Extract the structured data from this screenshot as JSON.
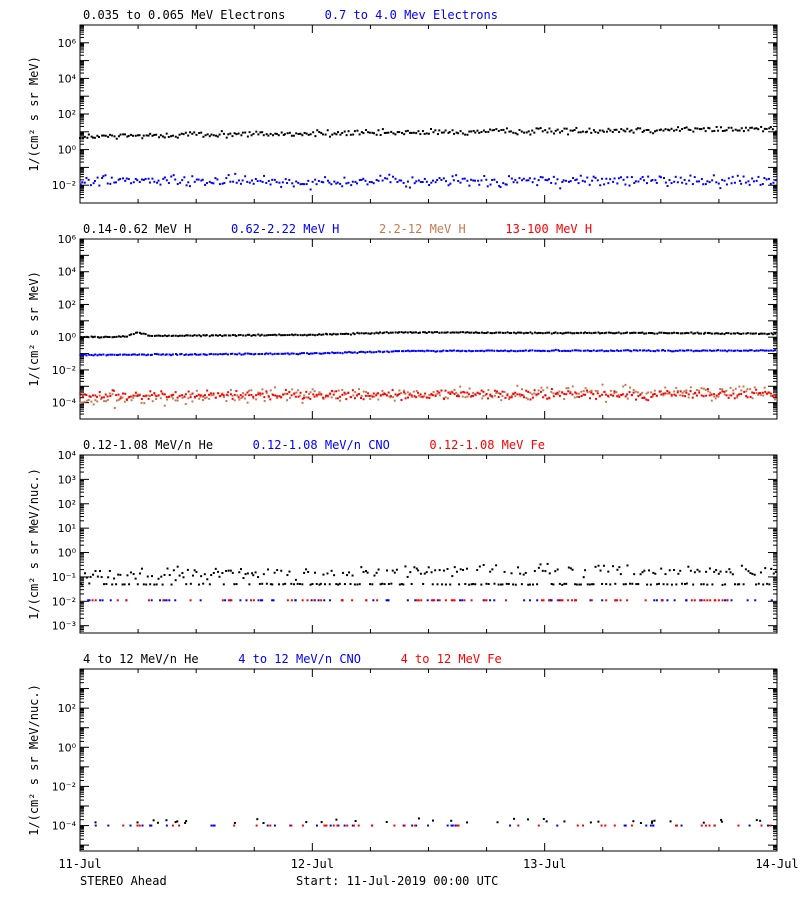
{
  "x_axis": {
    "ticks": [
      "11-Jul",
      "12-Jul",
      "13-Jul",
      "14-Jul"
    ],
    "xlim": [
      0,
      3
    ],
    "footer_left": "STEREO Ahead",
    "footer_center": "Start: 11-Jul-2019 00:00 UTC"
  },
  "colors": {
    "black": "#000000",
    "blue": "#0000ff",
    "tan": "#c87850",
    "red": "#ff0000"
  },
  "panels": [
    {
      "ylabel": "1/(cm² s sr MeV)",
      "ylim_exp": [
        -3,
        7
      ],
      "tick_exps": [
        -2,
        0,
        2,
        4,
        6
      ],
      "legend": [
        {
          "text": "0.035 to 0.065 MeV Electrons",
          "color": "#000000"
        },
        {
          "text": "0.7 to 4.0 Mev Electrons",
          "color": "#0000ff"
        }
      ]
    },
    {
      "ylabel": "1/(cm² s sr MeV)",
      "ylim_exp": [
        -5,
        6
      ],
      "tick_exps": [
        -4,
        -2,
        0,
        2,
        4,
        6
      ],
      "legend": [
        {
          "text": "0.14-0.62 MeV H",
          "color": "#000000"
        },
        {
          "text": "0.62-2.22 MeV H",
          "color": "#0000ff"
        },
        {
          "text": "2.2-12 MeV H",
          "color": "#c87850"
        },
        {
          "text": "13-100 MeV H",
          "color": "#ff0000"
        }
      ]
    },
    {
      "ylabel": "1/(cm² s sr MeV/nuc.)",
      "ylim_exp": [
        -3.3,
        4
      ],
      "tick_exps": [
        -3,
        -2,
        -1,
        0,
        1,
        2,
        3,
        4
      ],
      "legend": [
        {
          "text": "0.12-1.08 MeV/n He",
          "color": "#000000"
        },
        {
          "text": "0.12-1.08 MeV/n CNO",
          "color": "#0000ff"
        },
        {
          "text": "0.12-1.08 MeV Fe",
          "color": "#ff0000"
        }
      ]
    },
    {
      "ylabel": "1/(cm² s sr MeV/nuc.)",
      "ylim_exp": [
        -5.3,
        4
      ],
      "tick_exps": [
        -4,
        -2,
        0,
        2
      ],
      "legend": [
        {
          "text": "4 to 12 MeV/n He",
          "color": "#000000"
        },
        {
          "text": "4 to 12 MeV/n CNO",
          "color": "#0000ff"
        },
        {
          "text": "4 to 12 MeV Fe",
          "color": "#ff0000"
        }
      ]
    }
  ],
  "chart_data": [
    {
      "type": "scatter",
      "x_unit": "days since 11-Jul-2019 00:00 UTC",
      "yscale": "log",
      "series": [
        {
          "name": "0.035 to 0.065 MeV Electrons",
          "color": "#000000",
          "x": [
            0,
            0.5,
            1,
            1.5,
            2,
            2.5,
            3
          ],
          "y": [
            5,
            7,
            8,
            9,
            11,
            13,
            15
          ],
          "scatter_factor": 1.4
        },
        {
          "name": "0.7 to 4.0 Mev Electrons",
          "color": "#0000ff",
          "x": [
            0,
            1,
            2,
            3
          ],
          "y": [
            0.018,
            0.016,
            0.017,
            0.018
          ],
          "scatter_factor": 1.9
        }
      ]
    },
    {
      "type": "scatter",
      "x_unit": "days since 11-Jul-2019 00:00 UTC",
      "yscale": "log",
      "series": [
        {
          "name": "0.14-0.62 MeV H",
          "color": "#000000",
          "x": [
            0,
            0.2,
            0.25,
            0.3,
            1,
            1.4,
            2,
            2.5,
            3
          ],
          "y": [
            1.0,
            1.1,
            2.0,
            1.2,
            1.4,
            2.0,
            1.8,
            1.8,
            1.6
          ],
          "scatter_factor": 1.08
        },
        {
          "name": "0.62-2.22 MeV H",
          "color": "#0000ff",
          "x": [
            0,
            1,
            1.4,
            2,
            3
          ],
          "y": [
            0.08,
            0.1,
            0.14,
            0.15,
            0.15
          ],
          "scatter_factor": 1.08
        },
        {
          "name": "2.2-12 MeV H",
          "color": "#c87850",
          "x": [
            0,
            0.5,
            1,
            2,
            3
          ],
          "y": [
            0.00012,
            0.00025,
            0.0003,
            0.00035,
            0.00045
          ],
          "scatter_factor": 2.2
        },
        {
          "name": "13-100 MeV H",
          "color": "#ff0000",
          "x": [
            0,
            1,
            2,
            3
          ],
          "y": [
            0.0003,
            0.0003,
            0.0003,
            0.0003
          ],
          "scatter_factor": 1.7
        }
      ]
    },
    {
      "type": "scatter",
      "x_unit": "days since 11-Jul-2019 00:00 UTC",
      "yscale": "log",
      "series": [
        {
          "name": "0.12-1.08 MeV/n He",
          "color": "#000000",
          "x": [
            0,
            1,
            2,
            3
          ],
          "y": [
            0.12,
            0.15,
            0.2,
            0.18
          ],
          "scatter_factor": 1.6,
          "baseline": 0.05
        },
        {
          "name": "0.12-1.08 MeV/n CNO",
          "color": "#0000ff",
          "x": [
            0,
            3
          ],
          "y": [
            0.011,
            0.011
          ],
          "scatter_factor": 1.0
        },
        {
          "name": "0.12-1.08 MeV Fe",
          "color": "#ff0000",
          "x": [
            0,
            3
          ],
          "y": [
            0.011,
            0.011
          ],
          "scatter_factor": 1.0
        }
      ]
    },
    {
      "type": "scatter",
      "x_unit": "days since 11-Jul-2019 00:00 UTC",
      "yscale": "log",
      "series": [
        {
          "name": "4 to 12 MeV/n He",
          "color": "#000000",
          "x": [
            0,
            3
          ],
          "y": [
            0.00016,
            0.00016
          ],
          "scatter_factor": 1.3
        },
        {
          "name": "4 to 12 MeV/n CNO",
          "color": "#0000ff",
          "x": [
            0,
            3
          ],
          "y": [
            0.0001,
            0.0001
          ],
          "scatter_factor": 1.0
        },
        {
          "name": "4 to 12 MeV Fe",
          "color": "#ff0000",
          "x": [
            0,
            3
          ],
          "y": [
            0.0001,
            0.0001
          ],
          "scatter_factor": 1.0
        }
      ]
    }
  ]
}
